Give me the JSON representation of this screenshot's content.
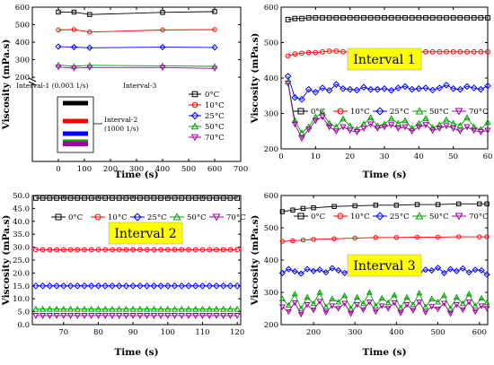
{
  "chart_data": [
    {
      "panel": "a",
      "type": "scatter",
      "title": "",
      "xlabel": "Time (s)",
      "ylabel": "Viscosity (mPa.s)",
      "xlim": [
        -100,
        700
      ],
      "xticks": [
        0,
        100,
        200,
        300,
        400,
        500,
        600,
        700
      ],
      "ylim_upper": [
        180,
        600
      ],
      "yticks_upper": [
        200,
        300,
        400,
        500,
        600
      ],
      "axis_break": true,
      "annotations": [
        "Interval-1 (0.003 1/s)",
        "Interval-3",
        "Interval-2 (1000 1/s)"
      ],
      "legend_position": "lower-right",
      "series": [
        {
          "name": "0°C",
          "color": "#000000",
          "marker": "square",
          "x": [
            0,
            60,
            120,
            400,
            600
          ],
          "y": [
            572,
            572,
            558,
            570,
            575
          ],
          "interval2_value": 49
        },
        {
          "name": "10°C",
          "color": "#ff0000",
          "marker": "circle",
          "x": [
            0,
            60,
            120,
            400,
            600
          ],
          "y": [
            470,
            472,
            458,
            470,
            472
          ],
          "interval2_value": 29
        },
        {
          "name": "25°C",
          "color": "#0000ff",
          "marker": "diamond",
          "x": [
            0,
            60,
            120,
            400,
            600
          ],
          "y": [
            375,
            372,
            368,
            372,
            370
          ],
          "interval2_value": 15
        },
        {
          "name": "50°C",
          "color": "#00a000",
          "marker": "triangle-up",
          "x": [
            0,
            60,
            120,
            400,
            600
          ],
          "y": [
            270,
            262,
            268,
            265,
            262
          ],
          "interval2_value": 6
        },
        {
          "name": "70°C",
          "color": "#a000a0",
          "marker": "triangle-down",
          "x": [
            0,
            60,
            120,
            400,
            600
          ],
          "y": [
            258,
            252,
            255,
            255,
            250
          ],
          "interval2_value": 3.5
        }
      ]
    },
    {
      "panel": "b",
      "type": "scatter",
      "title": "Interval 1",
      "xlabel": "Time (s)",
      "ylabel": "Viscosity (mPa.s)",
      "xlim": [
        0,
        60
      ],
      "ylim": [
        200,
        600
      ],
      "xticks": [
        0,
        10,
        20,
        30,
        40,
        50,
        60
      ],
      "yticks": [
        200,
        300,
        400,
        500,
        600
      ],
      "x": [
        2,
        4,
        6,
        8,
        10,
        12,
        14,
        16,
        18,
        20,
        22,
        24,
        26,
        28,
        30,
        32,
        34,
        36,
        38,
        40,
        42,
        44,
        46,
        48,
        50,
        52,
        54,
        56,
        58,
        60
      ],
      "legend_position": "bottom",
      "series": [
        {
          "name": "0°C",
          "color": "#000000",
          "marker": "square",
          "y": [
            565,
            568,
            568,
            570,
            570,
            570,
            570,
            570,
            570,
            570,
            570,
            570,
            570,
            570,
            570,
            570,
            570,
            570,
            570,
            570,
            570,
            570,
            570,
            570,
            570,
            570,
            570,
            570,
            570,
            570
          ]
        },
        {
          "name": "10°C",
          "color": "#ff0000",
          "marker": "circle",
          "y": [
            462,
            468,
            470,
            472,
            472,
            474,
            476,
            476,
            474,
            474,
            474,
            476,
            476,
            474,
            474,
            476,
            474,
            474,
            474,
            474,
            474,
            474,
            474,
            474,
            474,
            474,
            474,
            474,
            474,
            474
          ]
        },
        {
          "name": "25°C",
          "color": "#0000ff",
          "marker": "diamond",
          "y": [
            405,
            345,
            340,
            368,
            360,
            372,
            365,
            382,
            370,
            368,
            366,
            374,
            368,
            368,
            370,
            365,
            372,
            376,
            368,
            370,
            372,
            366,
            372,
            380,
            370,
            368,
            376,
            372,
            368,
            378
          ]
        },
        {
          "name": "50°C",
          "color": "#00a000",
          "marker": "triangle-up",
          "y": [
            390,
            280,
            245,
            262,
            290,
            302,
            272,
            262,
            285,
            265,
            255,
            270,
            288,
            265,
            270,
            285,
            272,
            280,
            258,
            272,
            286,
            260,
            268,
            282,
            272,
            266,
            288,
            262,
            255,
            275
          ]
        },
        {
          "name": "70°C",
          "color": "#a000a0",
          "marker": "triangle-down",
          "y": [
            385,
            270,
            230,
            255,
            280,
            290,
            262,
            250,
            262,
            252,
            248,
            258,
            270,
            258,
            262,
            268,
            258,
            262,
            250,
            262,
            268,
            252,
            258,
            265,
            258,
            250,
            262,
            252,
            248,
            252
          ]
        }
      ]
    },
    {
      "panel": "c",
      "type": "scatter",
      "title": "Interval 2",
      "xlabel": "Time (s)",
      "ylabel": "Viscosity (mPa.s)",
      "xlim": [
        61,
        121
      ],
      "ylim": [
        0,
        50
      ],
      "xticks": [
        70,
        80,
        90,
        100,
        110,
        120
      ],
      "yticks": [
        0,
        5,
        10,
        15,
        20,
        25,
        30,
        35,
        40,
        45,
        50
      ],
      "x": [
        62,
        64,
        66,
        68,
        70,
        72,
        74,
        76,
        78,
        80,
        82,
        84,
        86,
        88,
        90,
        92,
        94,
        96,
        98,
        100,
        102,
        104,
        106,
        108,
        110,
        112,
        114,
        116,
        118,
        120
      ],
      "legend_position": "top",
      "series": [
        {
          "name": "0°C",
          "color": "#000000",
          "marker": "square",
          "y": [
            49,
            49,
            49,
            49,
            49,
            49,
            49,
            49,
            49,
            49,
            49,
            49,
            49,
            49,
            49,
            49,
            49,
            49,
            49,
            49,
            49,
            49,
            49,
            49,
            49,
            49,
            49,
            49,
            49,
            49
          ]
        },
        {
          "name": "10°C",
          "color": "#ff0000",
          "marker": "circle",
          "y": [
            29,
            29,
            29,
            29,
            29,
            29,
            29,
            29,
            29,
            29,
            29,
            29,
            29,
            29,
            29,
            29,
            29,
            29,
            29,
            29,
            29,
            29,
            29,
            29,
            29,
            29,
            29,
            29,
            29,
            29
          ]
        },
        {
          "name": "25°C",
          "color": "#0000ff",
          "marker": "diamond",
          "y": [
            15,
            15,
            15,
            15,
            15,
            15,
            15,
            15,
            15,
            15,
            15,
            15,
            15,
            15,
            15,
            15,
            15,
            15,
            15,
            15,
            15,
            15,
            15,
            15,
            15,
            15,
            15,
            15,
            15,
            15
          ]
        },
        {
          "name": "50°C",
          "color": "#00a000",
          "marker": "triangle-up",
          "y": [
            6,
            6,
            6,
            6,
            6,
            6,
            6,
            6,
            6,
            6,
            6,
            6,
            6,
            6,
            6,
            6,
            6,
            6,
            6,
            6,
            6,
            6,
            6,
            6,
            6,
            6,
            6,
            6,
            6,
            6
          ]
        },
        {
          "name": "70°C",
          "color": "#a000a0",
          "marker": "triangle-down",
          "y": [
            3.5,
            3.5,
            3.5,
            3.5,
            3.5,
            3.5,
            3.5,
            3.5,
            3.5,
            3.5,
            3.5,
            3.5,
            3.5,
            3.5,
            3.5,
            3.5,
            3.5,
            3.5,
            3.5,
            3.5,
            3.5,
            3.5,
            3.5,
            3.5,
            3.5,
            3.5,
            3.5,
            3.5,
            3.5,
            3.5
          ]
        }
      ]
    },
    {
      "panel": "d",
      "type": "scatter",
      "title": "Interval 3",
      "xlabel": "Time (s)",
      "ylabel": "Viscosity (mPa.s)",
      "xlim": [
        122,
        620
      ],
      "ylim": [
        200,
        600
      ],
      "xticks": [
        200,
        300,
        400,
        500,
        600
      ],
      "yticks": [
        200,
        300,
        400,
        500,
        600
      ],
      "legend_position": "top",
      "series": [
        {
          "name": "0°C",
          "color": "#000000",
          "marker": "square",
          "x": [
            125,
            150,
            175,
            200,
            250,
            300,
            350,
            400,
            450,
            500,
            550,
            600,
            618
          ],
          "y": [
            550,
            555,
            560,
            562,
            566,
            568,
            570,
            570,
            572,
            572,
            574,
            574,
            574
          ]
        },
        {
          "name": "10°C",
          "color": "#ff0000",
          "marker": "circle",
          "x": [
            125,
            150,
            175,
            200,
            250,
            300,
            350,
            400,
            450,
            500,
            550,
            600,
            618
          ],
          "y": [
            458,
            460,
            462,
            464,
            466,
            468,
            470,
            470,
            471,
            471,
            472,
            472,
            472
          ]
        },
        {
          "name": "25°C",
          "color": "#0000ff",
          "marker": "diamond",
          "x": [
            125,
            140,
            155,
            170,
            185,
            200,
            215,
            230,
            245,
            260,
            275,
            290,
            305,
            320,
            335,
            350,
            365,
            380,
            395,
            410,
            425,
            440,
            455,
            470,
            485,
            500,
            515,
            530,
            545,
            560,
            575,
            590,
            605,
            618
          ],
          "y": [
            360,
            372,
            365,
            358,
            372,
            366,
            370,
            362,
            375,
            368,
            360,
            372,
            366,
            374,
            362,
            370,
            365,
            376,
            360,
            370,
            366,
            374,
            362,
            370,
            368,
            376,
            360,
            372,
            366,
            374,
            362,
            370,
            368,
            355
          ]
        },
        {
          "name": "50°C",
          "color": "#00a000",
          "marker": "triangle-up",
          "x": [
            125,
            140,
            155,
            170,
            185,
            200,
            215,
            230,
            245,
            260,
            275,
            290,
            305,
            320,
            335,
            350,
            365,
            380,
            395,
            410,
            425,
            440,
            455,
            470,
            485,
            500,
            515,
            530,
            545,
            560,
            575,
            590,
            605,
            618
          ],
          "y": [
            280,
            260,
            295,
            250,
            285,
            265,
            300,
            255,
            280,
            270,
            290,
            250,
            285,
            265,
            300,
            258,
            282,
            268,
            292,
            252,
            285,
            262,
            298,
            255,
            280,
            270,
            290,
            250,
            285,
            265,
            295,
            258,
            282,
            268
          ]
        },
        {
          "name": "70°C",
          "color": "#a000a0",
          "marker": "triangle-down",
          "x": [
            125,
            140,
            155,
            170,
            185,
            200,
            215,
            230,
            245,
            260,
            275,
            290,
            305,
            320,
            335,
            350,
            365,
            380,
            395,
            410,
            425,
            440,
            455,
            470,
            485,
            500,
            515,
            530,
            545,
            560,
            575,
            590,
            605,
            618
          ],
          "y": [
            255,
            240,
            268,
            232,
            262,
            245,
            272,
            238,
            258,
            250,
            266,
            234,
            262,
            246,
            270,
            240,
            258,
            250,
            268,
            236,
            262,
            244,
            270,
            238,
            256,
            248,
            266,
            234,
            262,
            246,
            270,
            240,
            258,
            250
          ]
        }
      ]
    }
  ]
}
